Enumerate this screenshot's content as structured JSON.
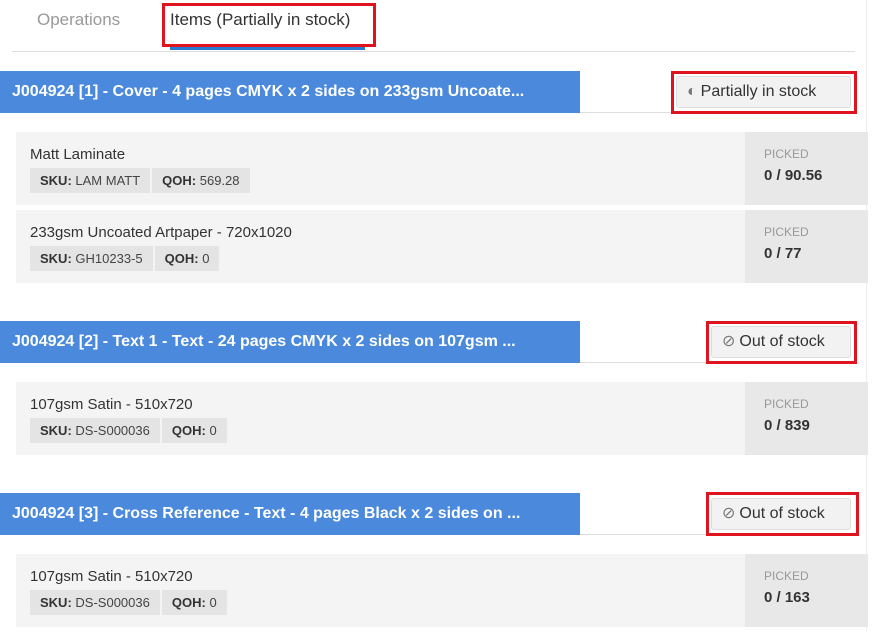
{
  "tabs": [
    {
      "label": "Operations",
      "active": false
    },
    {
      "label": "Items (Partially in stock)",
      "active": true
    }
  ],
  "colors": {
    "header": "#4a89dc",
    "highlight": "#e0141e",
    "tab_underline": "#2a7bd0"
  },
  "sections": [
    {
      "title": "J004924 [1] - Cover - 4 pages CMYK x 2 sides on 233gsm Uncoate...",
      "status": "Partially in stock",
      "status_icon": "half-circle-icon",
      "items": [
        {
          "name": "Matt Laminate",
          "sku_label": "SKU:",
          "sku": "LAM MATT",
          "qoh_label": "QOH:",
          "qoh": "569.28",
          "picked_label": "PICKED",
          "picked": "0 / 90.56"
        },
        {
          "name": "233gsm Uncoated Artpaper - 720x1020",
          "sku_label": "SKU:",
          "sku": "GH10233-5",
          "qoh_label": "QOH:",
          "qoh": "0",
          "picked_label": "PICKED",
          "picked": "0 / 77"
        }
      ]
    },
    {
      "title": "J004924 [2] - Text 1 - Text - 24 pages CMYK x 2 sides on 107gsm ...",
      "status": "Out of stock",
      "status_icon": "ban-icon",
      "items": [
        {
          "name": "107gsm Satin - 510x720",
          "sku_label": "SKU:",
          "sku": "DS-S000036",
          "qoh_label": "QOH:",
          "qoh": "0",
          "picked_label": "PICKED",
          "picked": "0 / 839"
        }
      ]
    },
    {
      "title": "J004924 [3] - Cross Reference - Text - 4 pages Black x 2 sides on ...",
      "status": "Out of stock",
      "status_icon": "ban-icon",
      "items": [
        {
          "name": "107gsm Satin - 510x720",
          "sku_label": "SKU:",
          "sku": "DS-S000036",
          "qoh_label": "QOH:",
          "qoh": "0",
          "picked_label": "PICKED",
          "picked": "0 / 163"
        }
      ]
    }
  ]
}
